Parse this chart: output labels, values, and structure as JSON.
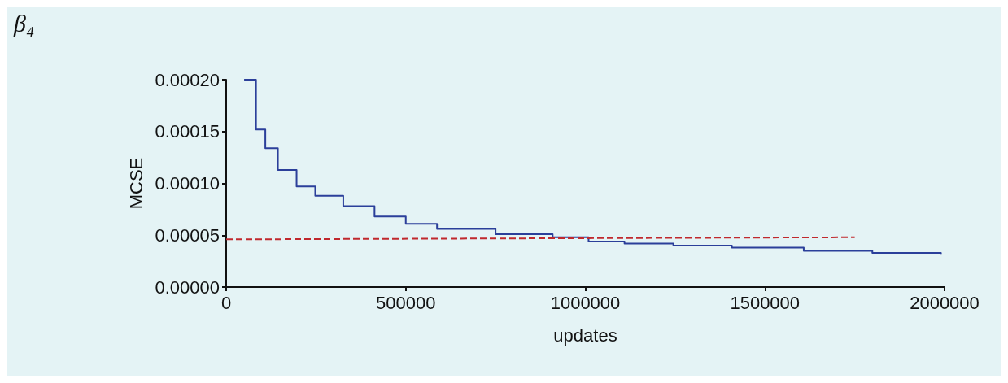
{
  "chart_data": {
    "type": "step",
    "title": "β₄",
    "xlabel": "updates",
    "ylabel": "MCSE",
    "xlim": [
      0,
      2000000
    ],
    "xticks": [
      0,
      500000,
      1000000,
      1500000,
      2000000
    ],
    "ylim": [
      0,
      0.0002
    ],
    "yticks": [
      {
        "value": 0,
        "label": "0.00000"
      },
      {
        "value": 5e-05,
        "label": "0.00005"
      },
      {
        "value": 0.0001,
        "label": "0.00010"
      },
      {
        "value": 0.00015,
        "label": "0.00015"
      },
      {
        "value": 0.0002,
        "label": "0.00020"
      }
    ],
    "grid": false,
    "series": [
      {
        "color": "#2b3f9a",
        "x": [
          50000,
          83000,
          109000,
          144000,
          196000,
          248000,
          326000,
          413000,
          500000,
          587000,
          750000,
          909000,
          1009000,
          1109000,
          1245000,
          1408000,
          1608000,
          1799000,
          1990000
        ],
        "values": [
          0.0002,
          0.000152,
          0.000134,
          0.000113,
          9.7e-05,
          8.8e-05,
          7.8e-05,
          6.8e-05,
          6.1e-05,
          5.6e-05,
          5.1e-05,
          4.8e-05,
          4.4e-05,
          4.2e-05,
          4e-05,
          3.8e-05,
          3.5e-05,
          3.3e-05,
          3.2e-05
        ]
      },
      {
        "type": "line",
        "color": "#c0282d",
        "line_style": "dashed",
        "x": [
          0,
          1750000
        ],
        "values": [
          4.6e-05,
          4.8e-05
        ]
      }
    ]
  }
}
